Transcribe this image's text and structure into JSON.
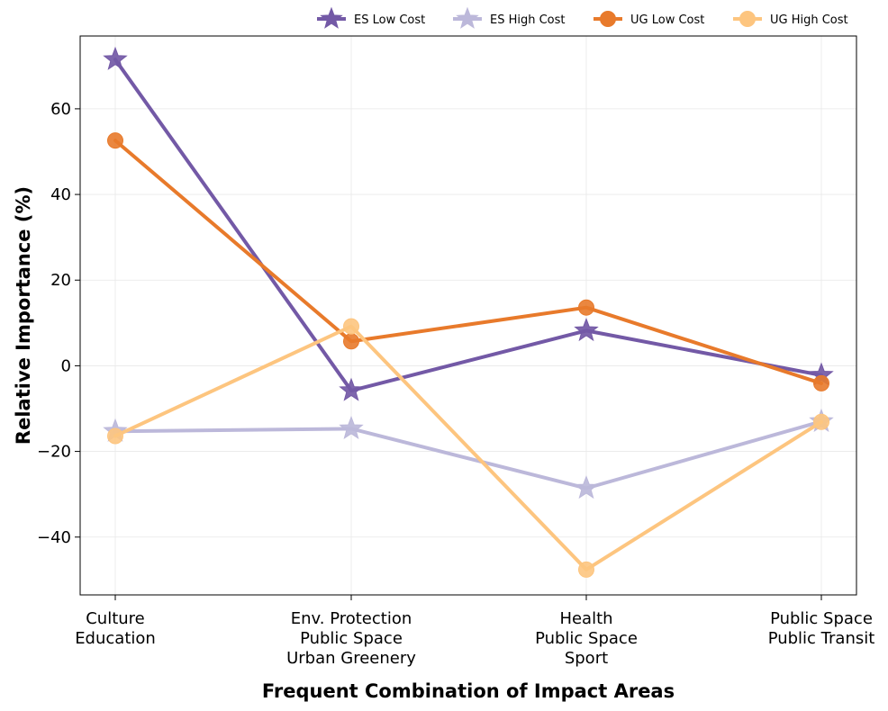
{
  "chart_data": {
    "type": "line",
    "title": "",
    "xlabel": "Frequent Combination of Impact Areas",
    "ylabel": "Relative Importance (%)",
    "categories": [
      [
        "Culture",
        "Education"
      ],
      [
        "Env. Protection",
        "Public Space",
        "Urban Greenery"
      ],
      [
        "Health",
        "Public Space",
        "Sport"
      ],
      [
        "Public Space",
        "Public Transit"
      ]
    ],
    "ylim": [
      -53.5,
      77
    ],
    "yticks": [
      -40,
      -20,
      0,
      20,
      40,
      60
    ],
    "ytick_labels": [
      "−40",
      "−20",
      "0",
      "20",
      "40",
      "60"
    ],
    "grid": true,
    "legend_position": "top-right, outside above plot",
    "series": [
      {
        "name": "ES Low Cost",
        "values": [
          71.5,
          -5.8,
          8.2,
          -2.2
        ],
        "color": "#7359a6",
        "marker": "star"
      },
      {
        "name": "ES High Cost",
        "values": [
          -15.3,
          -14.7,
          -28.6,
          -13.0
        ],
        "color": "#bcb8da",
        "marker": "star"
      },
      {
        "name": "UG Low Cost",
        "values": [
          52.6,
          5.7,
          13.6,
          -4.1
        ],
        "color": "#e87a2b",
        "marker": "circle"
      },
      {
        "name": "UG High Cost",
        "values": [
          -16.4,
          9.2,
          -47.6,
          -13.1
        ],
        "color": "#fdc57f",
        "marker": "circle"
      }
    ]
  }
}
